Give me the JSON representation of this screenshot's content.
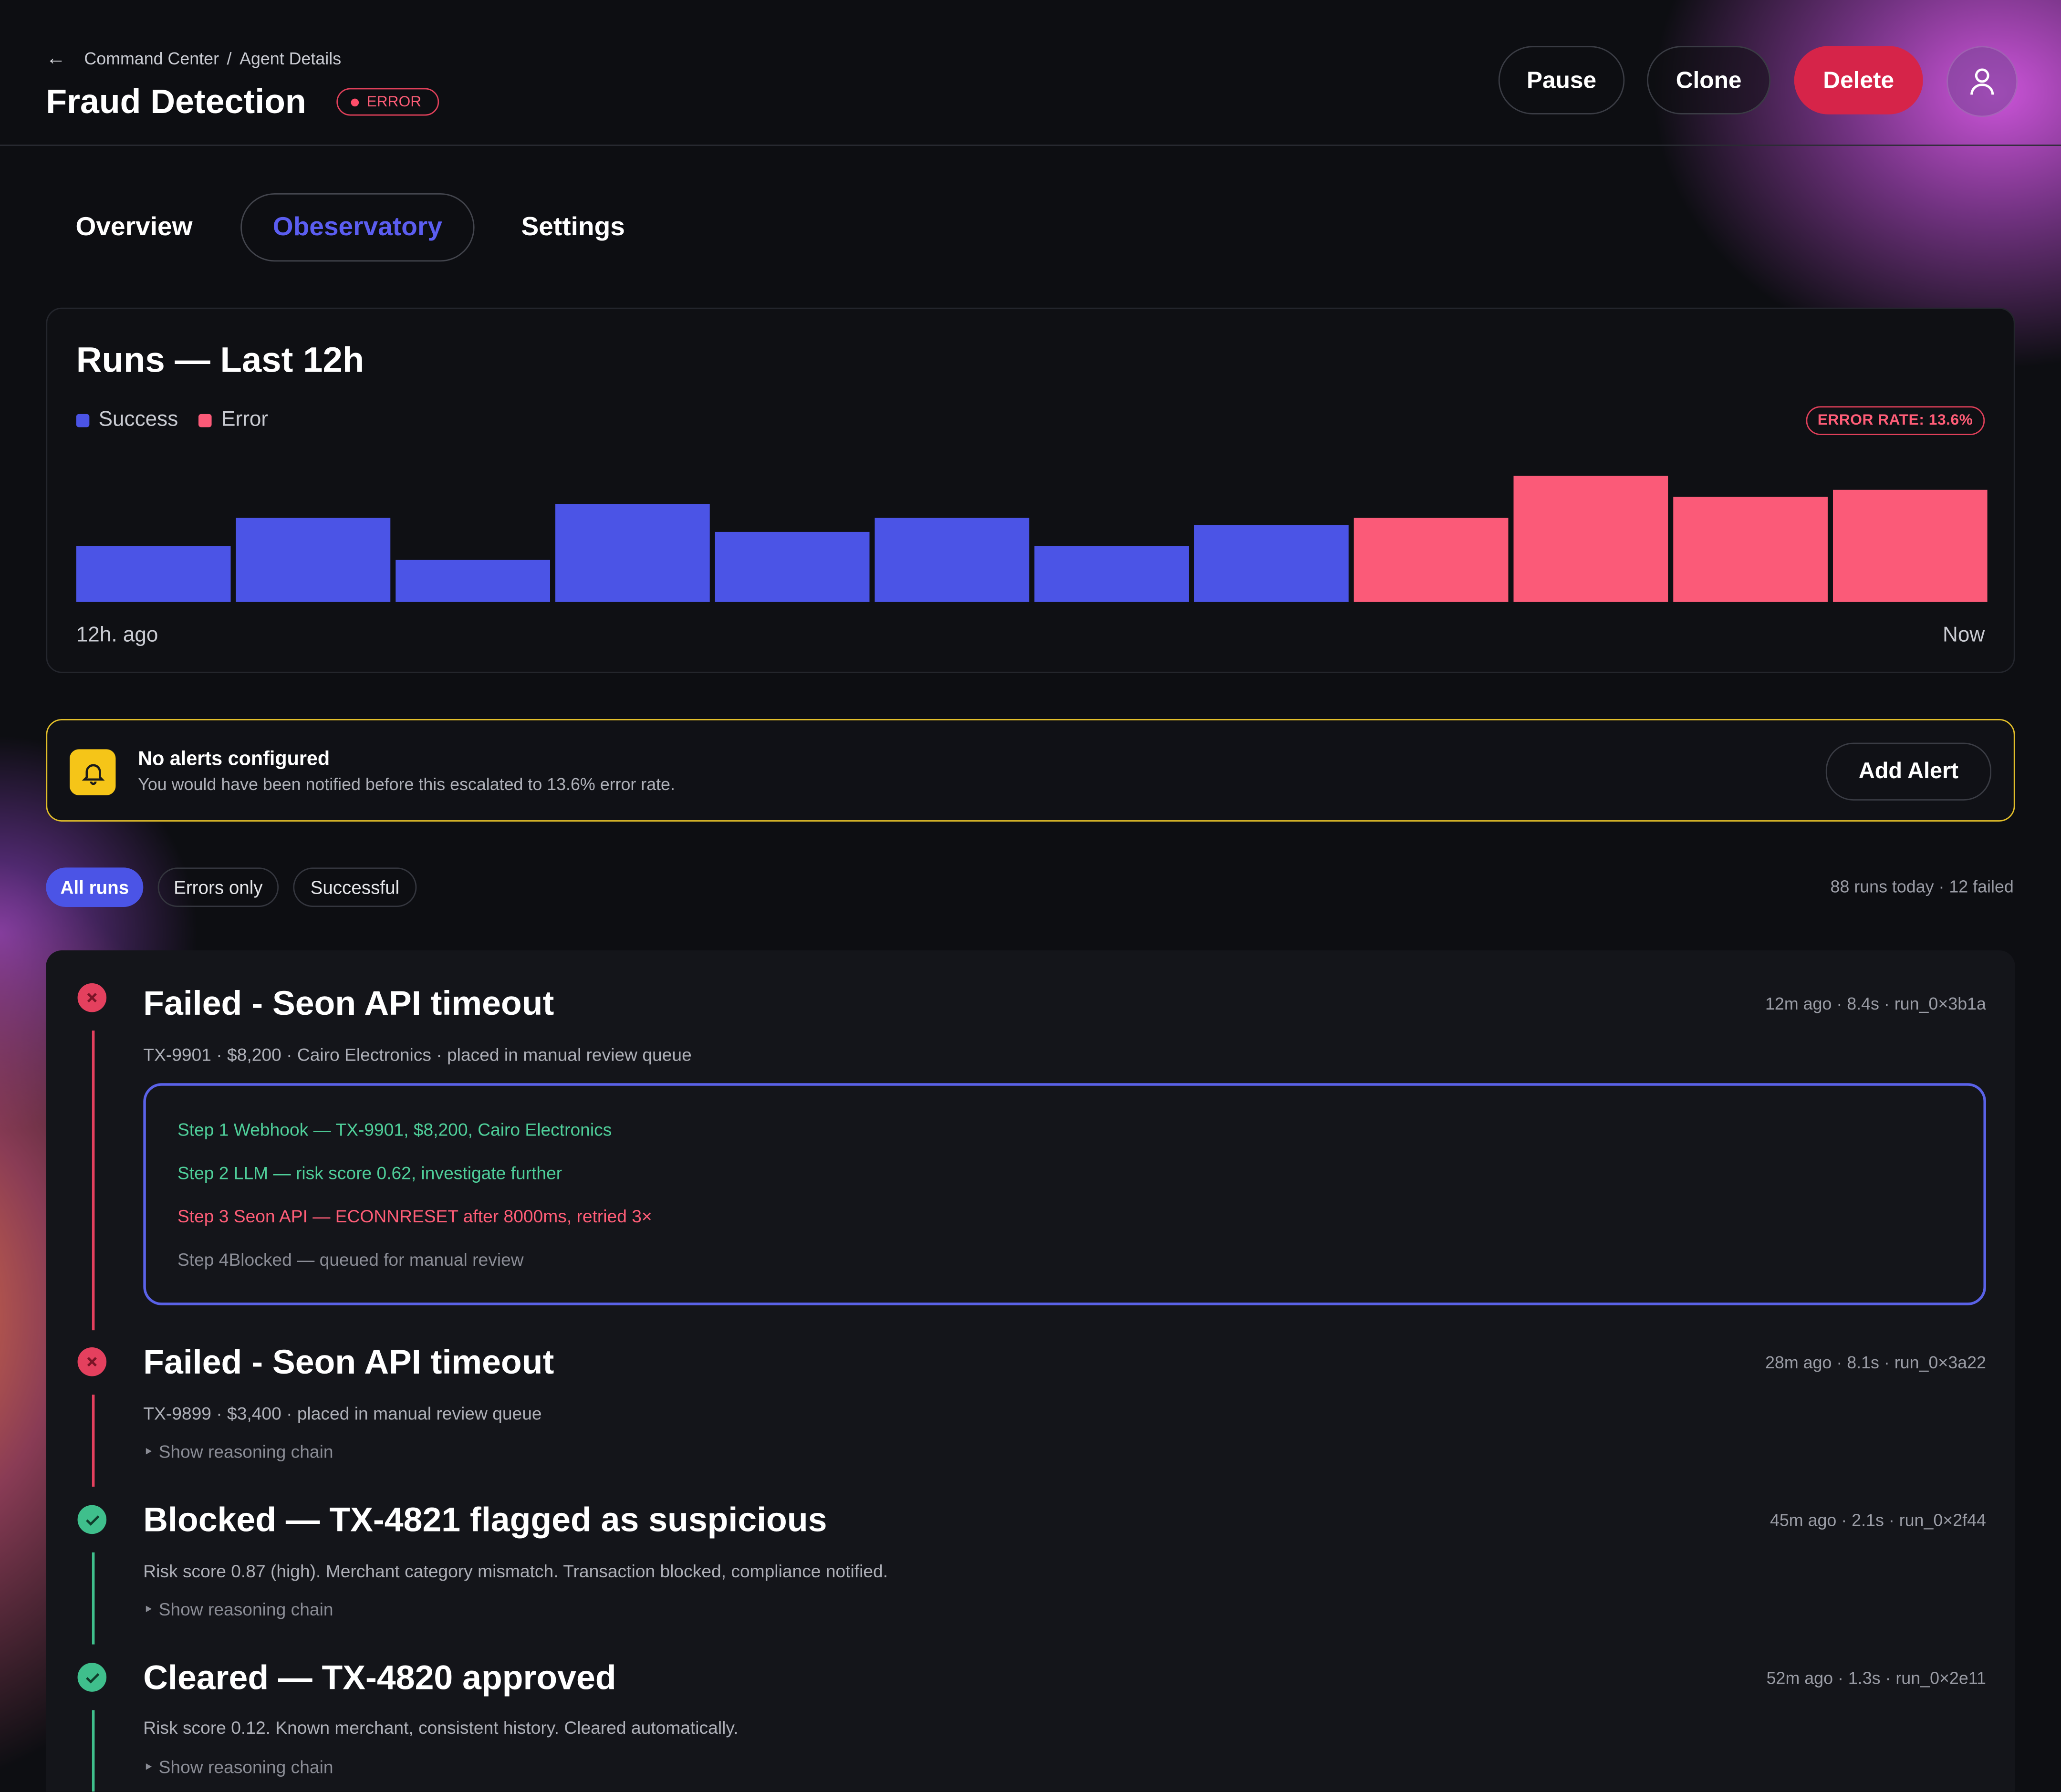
{
  "header": {
    "breadcrumb": [
      "Command Center",
      "Agent Details"
    ],
    "breadcrumb_sep": "/",
    "title": "Fraud Detection",
    "status_badge": "ERROR",
    "buttons": {
      "pause": "Pause",
      "clone": "Clone",
      "delete": "Delete"
    }
  },
  "tabs": [
    {
      "label": "Overview",
      "active": false
    },
    {
      "label": "Obeservatory",
      "active": true
    },
    {
      "label": "Settings",
      "active": false
    }
  ],
  "runs_card": {
    "title": "Runs — Last 12h",
    "legend": [
      {
        "label": "Success",
        "color": "#4b54e6"
      },
      {
        "label": "Error",
        "color": "#fb5a78"
      }
    ],
    "error_rate_badge": "ERROR RATE: 13.6%",
    "x_start_label": "12h. ago",
    "x_end_label": "Now"
  },
  "chart_data": {
    "type": "bar",
    "title": "Runs — Last 12h",
    "xlabel": "",
    "ylabel": "",
    "x_ticks": [
      "12h. ago",
      "Now"
    ],
    "series_legend": [
      "Success",
      "Error"
    ],
    "bars": [
      {
        "value": 4,
        "status": "Success"
      },
      {
        "value": 6,
        "status": "Success"
      },
      {
        "value": 3,
        "status": "Success"
      },
      {
        "value": 7,
        "status": "Success"
      },
      {
        "value": 5,
        "status": "Success"
      },
      {
        "value": 6,
        "status": "Success"
      },
      {
        "value": 4,
        "status": "Success"
      },
      {
        "value": 5.5,
        "status": "Success"
      },
      {
        "value": 6,
        "status": "Error"
      },
      {
        "value": 9,
        "status": "Error"
      },
      {
        "value": 7.5,
        "status": "Error"
      },
      {
        "value": 8,
        "status": "Error"
      }
    ],
    "ylim": [
      0,
      9
    ],
    "colors": {
      "Success": "#4b54e6",
      "Error": "#fb5a78"
    }
  },
  "alert": {
    "title": "No alerts configured",
    "subtitle": "You would have been notified before this escalated to 13.6% error rate.",
    "button": "Add Alert"
  },
  "filters": {
    "chips": [
      "All runs",
      "Errors only",
      "Successful"
    ],
    "active": "All runs",
    "summary": "88 runs today · 12 failed"
  },
  "runs": [
    {
      "status": "failed",
      "title": "Failed - Seon API timeout",
      "meta": "12m ago · 8.4s · run_0×3b1a",
      "desc": "TX-9901 · $8,200 · Cairo Electronics · placed in manual review queue",
      "steps": [
        {
          "text": "Step 1 Webhook — TX-9901, $8,200, Cairo Electronics",
          "state": "ok"
        },
        {
          "text": "Step 2 LLM — risk score 0.62, investigate further",
          "state": "ok"
        },
        {
          "text": "Step 3 Seon API — ECONNRESET after 8000ms, retried 3×",
          "state": "error"
        },
        {
          "text": "Step 4Blocked — queued for manual review",
          "state": "pending"
        }
      ]
    },
    {
      "status": "failed",
      "title": "Failed - Seon API timeout",
      "meta": "28m ago · 8.1s · run_0×3a22",
      "desc": "TX-9899 · $3,400 · placed in manual review queue",
      "show": "‣ Show reasoning chain"
    },
    {
      "status": "ok",
      "title": "Blocked — TX-4821 flagged as suspicious",
      "meta": "45m ago · 2.1s · run_0×2f44",
      "desc": "Risk score 0.87 (high). Merchant category mismatch. Transaction blocked, compliance notified.",
      "show": "‣ Show reasoning chain"
    },
    {
      "status": "ok",
      "title": "Cleared — TX-4820 approved",
      "meta": "52m ago · 1.3s · run_0×2e11",
      "desc": "Risk score 0.12. Known merchant, consistent history. Cleared automatically.",
      "show": "‣ Show reasoning chain"
    }
  ]
}
